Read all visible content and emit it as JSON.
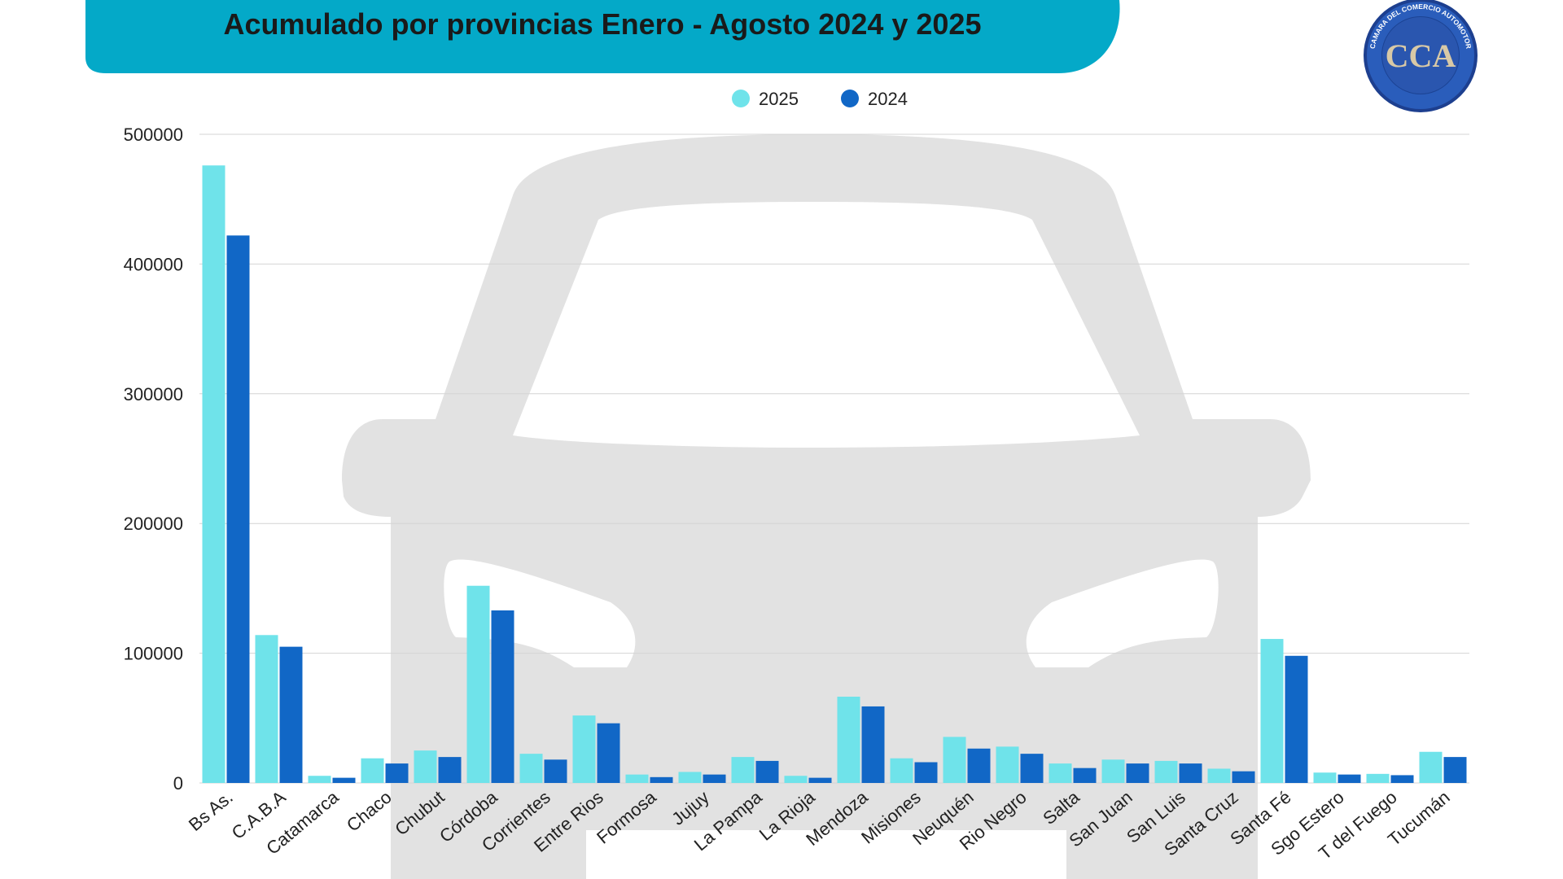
{
  "header": {
    "title": "Acumulado por provincias Enero  -  Agosto 2024 y 2025"
  },
  "logo": {
    "ring_text": "CAMARA DEL COMERCIO AUTOMOTOR",
    "letters": "CCA"
  },
  "colors": {
    "banner": "#04a9c8",
    "series_2025": "#6fe3ea",
    "series_2024": "#1167c6",
    "watermark": "#e2e2e2",
    "grid": "#d4d4d4"
  },
  "chart_data": {
    "type": "bar",
    "title": "Acumulado por provincias Enero  -  Agosto 2024 y 2025",
    "xlabel": "",
    "ylabel": "",
    "ylim": [
      0,
      500000
    ],
    "yticks": [
      "0",
      "100000",
      "200000",
      "300000",
      "400000",
      "500000"
    ],
    "grid": true,
    "legend_position": "top-center",
    "categories": [
      "Bs As.",
      "C.A.B.A",
      "Catamarca",
      "Chaco",
      "Chubut",
      "Córdoba",
      "Corrientes",
      "Entre Rios",
      "Formosa",
      "Jujuy",
      "La Pampa",
      "La Rioja",
      "Mendoza",
      "Misiones",
      "Neuquén",
      "Rio Negro",
      "Salta",
      "San Juan",
      "San Luis",
      "Santa Cruz",
      "Santa Fé",
      "Sgo Estero",
      "T del Fuego",
      "Tucumán"
    ],
    "series": [
      {
        "name": "2025",
        "values": [
          476000,
          114000,
          5500,
          19000,
          25000,
          152000,
          22500,
          52000,
          6500,
          8500,
          20000,
          5500,
          66500,
          19000,
          35500,
          28000,
          15000,
          18000,
          17000,
          11000,
          111000,
          8000,
          7000,
          24000
        ]
      },
      {
        "name": "2024",
        "values": [
          422000,
          105000,
          4000,
          15000,
          20000,
          133000,
          18000,
          46000,
          4500,
          6500,
          17000,
          4000,
          59000,
          16000,
          26500,
          22500,
          11500,
          15000,
          15000,
          9000,
          98000,
          6500,
          6000,
          20000
        ]
      }
    ]
  }
}
